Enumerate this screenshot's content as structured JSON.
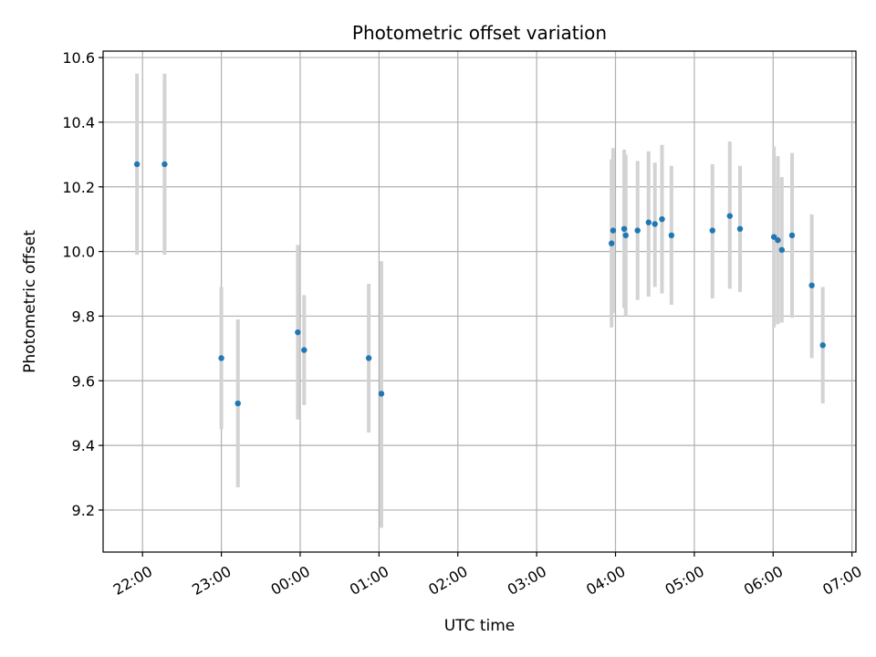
{
  "chart_data": {
    "type": "scatter",
    "title": "Photometric offset variation",
    "xlabel": "UTC time",
    "ylabel": "Photometric offset",
    "x_unit": "hours (UTC)",
    "xlim": [
      21.5,
      31.05
    ],
    "ylim": [
      9.07,
      10.62
    ],
    "x_ticks": [
      {
        "value": 22,
        "label": "22:00"
      },
      {
        "value": 23,
        "label": "23:00"
      },
      {
        "value": 24,
        "label": "00:00"
      },
      {
        "value": 25,
        "label": "01:00"
      },
      {
        "value": 26,
        "label": "02:00"
      },
      {
        "value": 27,
        "label": "03:00"
      },
      {
        "value": 28,
        "label": "04:00"
      },
      {
        "value": 29,
        "label": "05:00"
      },
      {
        "value": 30,
        "label": "06:00"
      },
      {
        "value": 31,
        "label": "07:00"
      }
    ],
    "y_ticks": [
      {
        "value": 9.2,
        "label": "9.2"
      },
      {
        "value": 9.4,
        "label": "9.4"
      },
      {
        "value": 9.6,
        "label": "9.6"
      },
      {
        "value": 9.8,
        "label": "9.8"
      },
      {
        "value": 10.0,
        "label": "10.0"
      },
      {
        "value": 10.2,
        "label": "10.2"
      },
      {
        "value": 10.4,
        "label": "10.4"
      },
      {
        "value": 10.6,
        "label": "10.6"
      }
    ],
    "grid": true,
    "point_color": "#1f77b4",
    "errorbar_color": "#d3d3d3",
    "points": [
      {
        "x": 21.93,
        "y": 10.27,
        "lo": 9.99,
        "hi": 10.55
      },
      {
        "x": 22.28,
        "y": 10.27,
        "lo": 9.99,
        "hi": 10.55
      },
      {
        "x": 23.0,
        "y": 9.67,
        "lo": 9.45,
        "hi": 9.89
      },
      {
        "x": 23.21,
        "y": 9.53,
        "lo": 9.27,
        "hi": 9.79
      },
      {
        "x": 23.97,
        "y": 9.75,
        "lo": 9.48,
        "hi": 10.02
      },
      {
        "x": 24.05,
        "y": 9.695,
        "lo": 9.525,
        "hi": 9.865
      },
      {
        "x": 24.87,
        "y": 9.67,
        "lo": 9.44,
        "hi": 9.9
      },
      {
        "x": 25.03,
        "y": 9.56,
        "lo": 9.145,
        "hi": 9.97
      },
      {
        "x": 27.95,
        "y": 10.025,
        "lo": 9.765,
        "hi": 10.285
      },
      {
        "x": 27.97,
        "y": 10.065,
        "lo": 9.81,
        "hi": 10.32
      },
      {
        "x": 28.11,
        "y": 10.07,
        "lo": 9.825,
        "hi": 10.315
      },
      {
        "x": 28.13,
        "y": 10.05,
        "lo": 9.8,
        "hi": 10.3
      },
      {
        "x": 28.28,
        "y": 10.065,
        "lo": 9.85,
        "hi": 10.28
      },
      {
        "x": 28.42,
        "y": 10.09,
        "lo": 9.86,
        "hi": 10.31
      },
      {
        "x": 28.5,
        "y": 10.085,
        "lo": 9.89,
        "hi": 10.275
      },
      {
        "x": 28.59,
        "y": 10.1,
        "lo": 9.87,
        "hi": 10.33
      },
      {
        "x": 28.71,
        "y": 10.05,
        "lo": 9.835,
        "hi": 10.265
      },
      {
        "x": 29.23,
        "y": 10.065,
        "lo": 9.855,
        "hi": 10.27
      },
      {
        "x": 29.45,
        "y": 10.11,
        "lo": 9.885,
        "hi": 10.34
      },
      {
        "x": 29.58,
        "y": 10.07,
        "lo": 9.875,
        "hi": 10.265
      },
      {
        "x": 30.01,
        "y": 10.045,
        "lo": 9.765,
        "hi": 10.325
      },
      {
        "x": 30.06,
        "y": 10.035,
        "lo": 9.775,
        "hi": 10.295
      },
      {
        "x": 30.11,
        "y": 10.005,
        "lo": 9.78,
        "hi": 10.23
      },
      {
        "x": 30.24,
        "y": 10.05,
        "lo": 9.795,
        "hi": 10.305
      },
      {
        "x": 30.49,
        "y": 9.895,
        "lo": 9.67,
        "hi": 10.115
      },
      {
        "x": 30.63,
        "y": 9.71,
        "lo": 9.53,
        "hi": 9.89
      }
    ]
  }
}
